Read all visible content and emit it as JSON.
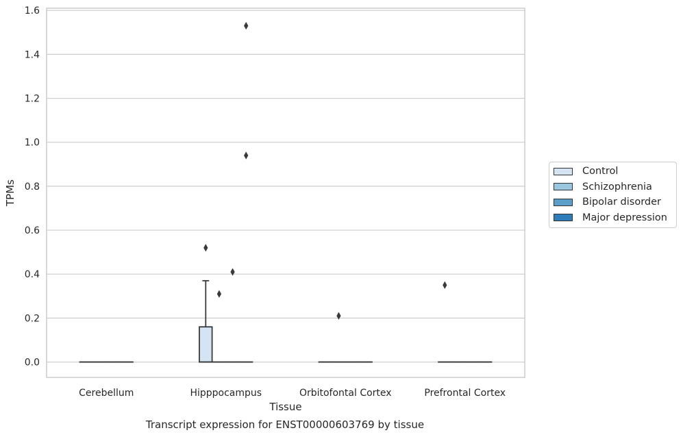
{
  "chart_data": {
    "type": "box",
    "title": "Transcript expression for ENST00000603769 by tissue",
    "xlabel": "Tissue",
    "ylabel": "TPMs",
    "ylim": [
      -0.07,
      1.61
    ],
    "yticks": [
      0.0,
      0.2,
      0.4,
      0.6,
      0.8,
      1.0,
      1.2,
      1.4,
      1.6
    ],
    "ytick_labels": [
      "0.0",
      "0.2",
      "0.4",
      "0.6",
      "0.8",
      "1.0",
      "1.2",
      "1.4",
      "1.6"
    ],
    "categories": [
      "Cerebellum",
      "Hipppocampus",
      "Orbitofontal Cortex",
      "Prefrontal Cortex"
    ],
    "grid": "horizontal",
    "legend_position": "right",
    "series": [
      {
        "name": "Control",
        "color": "#d4e4f3",
        "boxes": [
          {
            "category": "Cerebellum",
            "q1": 0,
            "median": 0,
            "q3": 0,
            "whisker_low": 0,
            "whisker_high": 0,
            "outliers": []
          },
          {
            "category": "Hipppocampus",
            "q1": 0,
            "median": 0,
            "q3": 0.16,
            "whisker_low": 0,
            "whisker_high": 0.37,
            "outliers": [
              0.52
            ]
          },
          {
            "category": "Orbitofontal Cortex",
            "q1": 0,
            "median": 0,
            "q3": 0,
            "whisker_low": 0,
            "whisker_high": 0,
            "outliers": []
          },
          {
            "category": "Prefrontal Cortex",
            "q1": 0,
            "median": 0,
            "q3": 0,
            "whisker_low": 0,
            "whisker_high": 0,
            "outliers": [
              0.35
            ]
          }
        ]
      },
      {
        "name": "Schizophrenia",
        "color": "#9ac6df",
        "boxes": [
          {
            "category": "Cerebellum",
            "q1": 0,
            "median": 0,
            "q3": 0,
            "whisker_low": 0,
            "whisker_high": 0,
            "outliers": []
          },
          {
            "category": "Hipppocampus",
            "q1": 0,
            "median": 0,
            "q3": 0,
            "whisker_low": 0,
            "whisker_high": 0,
            "outliers": [
              0.31
            ]
          },
          {
            "category": "Orbitofontal Cortex",
            "q1": 0,
            "median": 0,
            "q3": 0,
            "whisker_low": 0,
            "whisker_high": 0,
            "outliers": [
              0.21
            ]
          },
          {
            "category": "Prefrontal Cortex",
            "q1": 0,
            "median": 0,
            "q3": 0,
            "whisker_low": 0,
            "whisker_high": 0,
            "outliers": []
          }
        ]
      },
      {
        "name": "Bipolar disorder",
        "color": "#5b9ec9",
        "boxes": [
          {
            "category": "Cerebellum",
            "q1": 0,
            "median": 0,
            "q3": 0,
            "whisker_low": 0,
            "whisker_high": 0,
            "outliers": []
          },
          {
            "category": "Hipppocampus",
            "q1": 0,
            "median": 0,
            "q3": 0,
            "whisker_low": 0,
            "whisker_high": 0,
            "outliers": [
              0.41
            ]
          },
          {
            "category": "Orbitofontal Cortex",
            "q1": 0,
            "median": 0,
            "q3": 0,
            "whisker_low": 0,
            "whisker_high": 0,
            "outliers": []
          },
          {
            "category": "Prefrontal Cortex",
            "q1": 0,
            "median": 0,
            "q3": 0,
            "whisker_low": 0,
            "whisker_high": 0,
            "outliers": []
          }
        ]
      },
      {
        "name": "Major depression",
        "color": "#2d7dbb",
        "boxes": [
          {
            "category": "Cerebellum",
            "q1": 0,
            "median": 0,
            "q3": 0,
            "whisker_low": 0,
            "whisker_high": 0,
            "outliers": []
          },
          {
            "category": "Hipppocampus",
            "q1": 0,
            "median": 0,
            "q3": 0,
            "whisker_low": 0,
            "whisker_high": 0,
            "outliers": [
              0.94,
              1.53
            ]
          },
          {
            "category": "Orbitofontal Cortex",
            "q1": 0,
            "median": 0,
            "q3": 0,
            "whisker_low": 0,
            "whisker_high": 0,
            "outliers": []
          },
          {
            "category": "Prefrontal Cortex",
            "q1": 0,
            "median": 0,
            "q3": 0,
            "whisker_low": 0,
            "whisker_high": 0,
            "outliers": []
          }
        ]
      }
    ]
  },
  "legend": {
    "items": [
      {
        "label": "Control",
        "color": "#d4e4f3"
      },
      {
        "label": "Schizophrenia",
        "color": "#9ac6df"
      },
      {
        "label": "Bipolar disorder",
        "color": "#5b9ec9"
      },
      {
        "label": "Major depression",
        "color": "#2d7dbb"
      }
    ]
  }
}
